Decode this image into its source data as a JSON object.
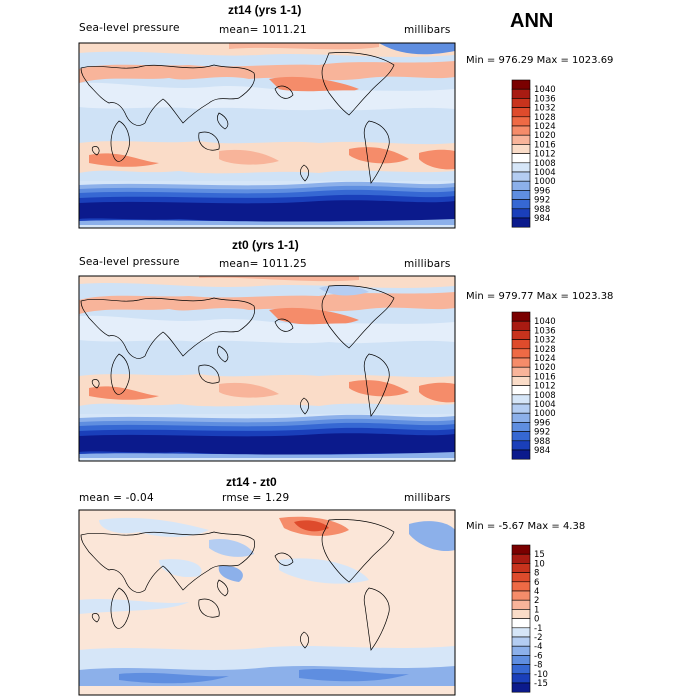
{
  "season": "ANN",
  "panels": [
    {
      "title": "zt14 (yrs 1-1)",
      "left_label": "Sea-level pressure",
      "center_label": "mean= 1011.21",
      "units": "millibars",
      "stats": "Min = 976.29 Max = 1023.69",
      "colorbar": {
        "levels": [
          "1040",
          "1036",
          "1032",
          "1028",
          "1024",
          "1020",
          "1016",
          "1012",
          "1008",
          "1004",
          "1000",
          "996",
          "992",
          "988",
          "984"
        ],
        "colors": [
          "#7a0000",
          "#a81b12",
          "#c8331d",
          "#de4b2c",
          "#ee6a45",
          "#f58c6a",
          "#f8b49a",
          "#fadcc8",
          "#ffffff",
          "#d6e6f8",
          "#b4cdf2",
          "#8cb0ea",
          "#5f8ee0",
          "#3668d3",
          "#1a3fba",
          "#0b1a8c"
        ]
      }
    },
    {
      "title": "zt0 (yrs 1-1)",
      "left_label": "Sea-level pressure",
      "center_label": "mean= 1011.25",
      "units": "millibars",
      "stats": "Min = 979.77 Max = 1023.38",
      "colorbar": {
        "levels": [
          "1040",
          "1036",
          "1032",
          "1028",
          "1024",
          "1020",
          "1016",
          "1012",
          "1008",
          "1004",
          "1000",
          "996",
          "992",
          "988",
          "984"
        ],
        "colors": [
          "#7a0000",
          "#a81b12",
          "#c8331d",
          "#de4b2c",
          "#ee6a45",
          "#f58c6a",
          "#f8b49a",
          "#fadcc8",
          "#ffffff",
          "#d6e6f8",
          "#b4cdf2",
          "#8cb0ea",
          "#5f8ee0",
          "#3668d3",
          "#1a3fba",
          "#0b1a8c"
        ]
      }
    },
    {
      "title": "zt14 - zt0",
      "left_label": "mean = -0.04",
      "center_label": "rmse = 1.29",
      "units": "millibars",
      "stats": "Min = -5.67 Max = 4.38",
      "colorbar": {
        "levels": [
          "15",
          "10",
          "8",
          "6",
          "4",
          "2",
          "1",
          "0",
          "-1",
          "-2",
          "-4",
          "-6",
          "-8",
          "-10",
          "-15"
        ],
        "colors": [
          "#7a0000",
          "#a81b12",
          "#c8331d",
          "#de4b2c",
          "#ee6a45",
          "#f58c6a",
          "#f8b49a",
          "#fadcc8",
          "#ffffff",
          "#d6e6f8",
          "#b4cdf2",
          "#8cb0ea",
          "#5f8ee0",
          "#3668d3",
          "#1a3fba",
          "#0b1a8c"
        ]
      }
    }
  ],
  "chart_data": [
    {
      "type": "heatmap",
      "title": "zt14 (yrs 1-1)",
      "variable": "Sea-level pressure",
      "units": "millibars",
      "mean": 1011.21,
      "min": 976.29,
      "max": 1023.69,
      "contour_levels": [
        984,
        988,
        992,
        996,
        1000,
        1004,
        1008,
        1012,
        1016,
        1020,
        1024,
        1028,
        1032,
        1036,
        1040
      ]
    },
    {
      "type": "heatmap",
      "title": "zt0 (yrs 1-1)",
      "variable": "Sea-level pressure",
      "units": "millibars",
      "mean": 1011.25,
      "min": 979.77,
      "max": 1023.38,
      "contour_levels": [
        984,
        988,
        992,
        996,
        1000,
        1004,
        1008,
        1012,
        1016,
        1020,
        1024,
        1028,
        1032,
        1036,
        1040
      ]
    },
    {
      "type": "heatmap",
      "title": "zt14 - zt0",
      "units": "millibars",
      "mean": -0.04,
      "rmse": 1.29,
      "min": -5.67,
      "max": 4.38,
      "contour_levels": [
        -15,
        -10,
        -8,
        -6,
        -4,
        -2,
        -1,
        0,
        1,
        2,
        4,
        6,
        8,
        10,
        15
      ]
    }
  ]
}
